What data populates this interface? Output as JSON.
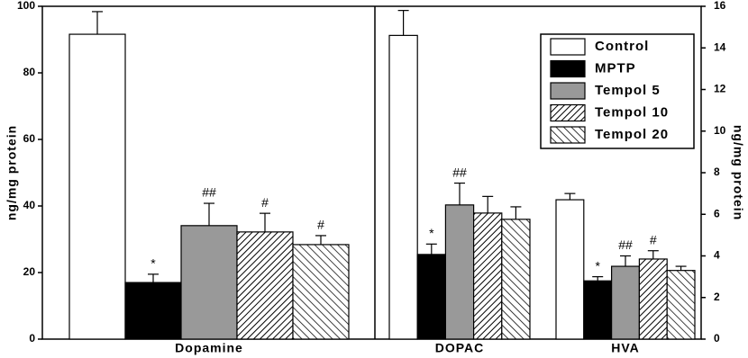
{
  "chart_data": {
    "type": "bar",
    "ylabel": "ng/mg protein",
    "y2label": "ng/mg protein",
    "categories": [
      "Dopamine",
      "DOPAC",
      "HVA"
    ],
    "category_axis": [
      "y",
      "y2",
      "y2"
    ],
    "ylim": [
      0,
      100
    ],
    "yticks": [
      0,
      20,
      40,
      60,
      80,
      100
    ],
    "y2lim": [
      0,
      16
    ],
    "y2ticks": [
      0,
      2,
      4,
      6,
      8,
      10,
      12,
      14,
      16
    ],
    "legend": "top-right",
    "series": [
      {
        "name": "Control",
        "color": "#ffffff",
        "pattern": "solid",
        "values": [
          91.6,
          14.6,
          6.7
        ],
        "errors": [
          6.8,
          1.2,
          0.3
        ],
        "annotations": [
          null,
          null,
          null
        ]
      },
      {
        "name": "MPTP",
        "color": "#000000",
        "pattern": "solid",
        "values": [
          17.0,
          4.07,
          2.8
        ],
        "errors": [
          2.5,
          0.5,
          0.2
        ],
        "annotations": [
          "*",
          "*",
          "*"
        ]
      },
      {
        "name": "Tempol 5",
        "color": "#999999",
        "pattern": "solid",
        "values": [
          34.1,
          6.45,
          3.5
        ],
        "errors": [
          6.7,
          1.05,
          0.5
        ],
        "annotations": [
          "##",
          "##",
          "##"
        ]
      },
      {
        "name": "Tempol 10",
        "color": "#000000",
        "pattern": "backslash",
        "values": [
          32.2,
          6.06,
          3.85
        ],
        "errors": [
          5.6,
          0.8,
          0.4
        ],
        "annotations": [
          "#",
          null,
          "#"
        ]
      },
      {
        "name": "Tempol 20",
        "color": "#000000",
        "pattern": "slash",
        "values": [
          28.4,
          5.76,
          3.3
        ],
        "errors": [
          2.7,
          0.6,
          0.2
        ],
        "annotations": [
          "#",
          null,
          null
        ]
      }
    ]
  }
}
